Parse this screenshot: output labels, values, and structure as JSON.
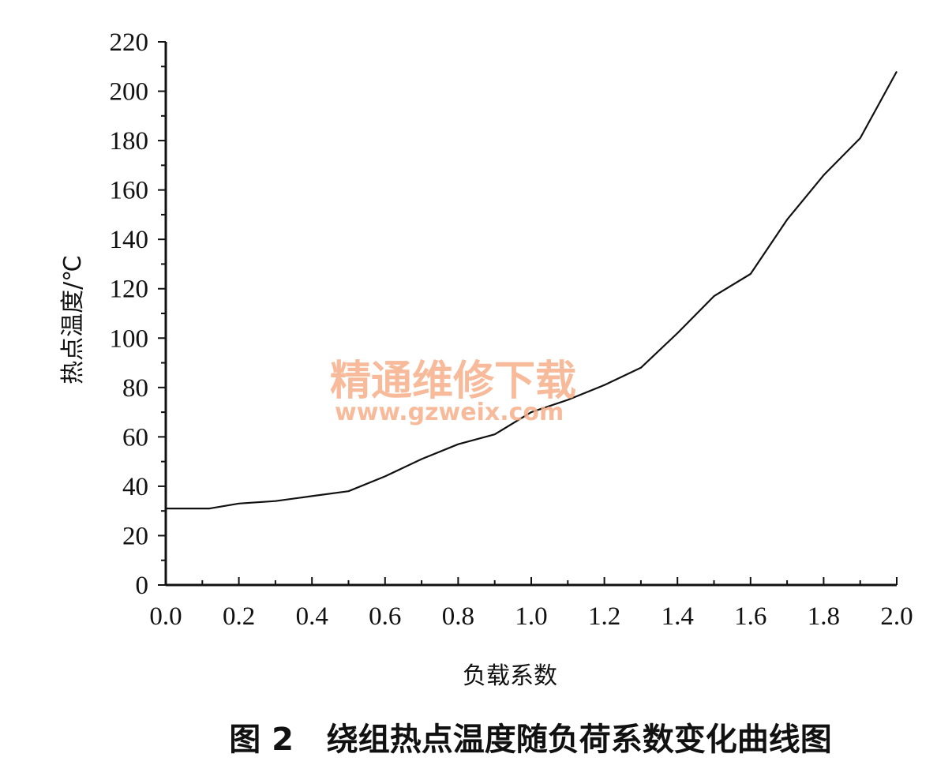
{
  "chart_data": {
    "type": "line",
    "xlabel": "负载系数",
    "ylabel": "热点温度/℃",
    "caption": "图 2   绕组热点温度随负荷系数变化曲线图",
    "xlim": [
      0.0,
      2.0
    ],
    "ylim": [
      0,
      220
    ],
    "x_ticks": [
      "0.0",
      "0.2",
      "0.4",
      "0.6",
      "0.8",
      "1.0",
      "1.2",
      "1.4",
      "1.6",
      "1.8",
      "2.0"
    ],
    "y_ticks": [
      "0",
      "20",
      "40",
      "60",
      "80",
      "100",
      "120",
      "140",
      "160",
      "180",
      "200",
      "220"
    ],
    "grid": false,
    "legend": "none",
    "line_color": "#111111",
    "series": [
      {
        "x": [
          0.0,
          0.12,
          0.2,
          0.3,
          0.4,
          0.5,
          0.6,
          0.7,
          0.8,
          0.9,
          1.0,
          1.1,
          1.2,
          1.3,
          1.4,
          1.5,
          1.6,
          1.7,
          1.8,
          1.9,
          2.0
        ],
        "y": [
          31,
          31,
          33,
          34,
          36,
          38,
          44,
          51,
          57,
          61,
          70,
          75,
          81,
          88,
          102,
          117,
          126,
          148,
          166,
          181,
          208
        ]
      }
    ]
  },
  "watermark": {
    "text": "精通维修下载",
    "url": "www.gzweix.com",
    "color": "#f6b08a"
  }
}
